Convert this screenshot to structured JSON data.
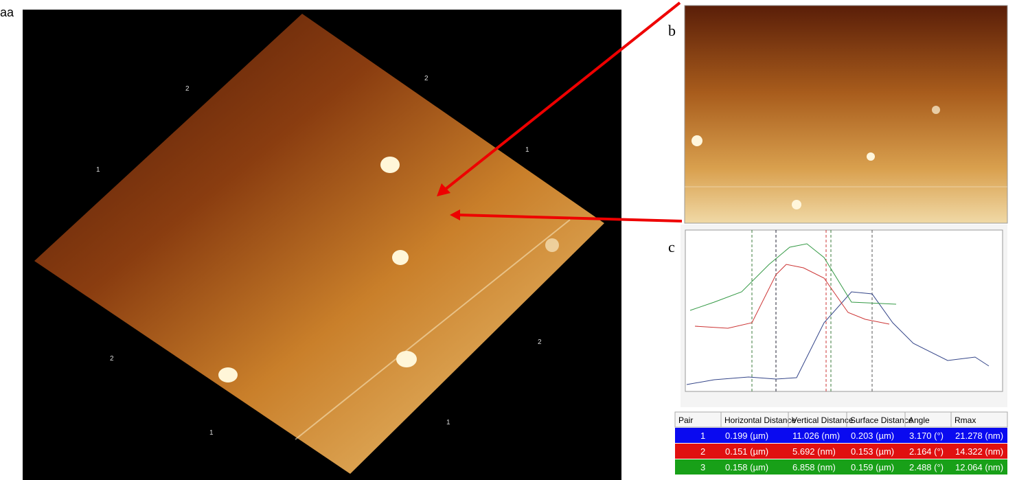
{
  "panel_labels": [
    "aa",
    "b",
    "c"
  ],
  "panel_a": {
    "axis_labels": [
      "2",
      "2",
      "1",
      "1",
      "2",
      "2",
      "1",
      "1"
    ]
  },
  "table": {
    "header": [
      "Pair",
      "Horizontal Distance",
      "Vertical Distance",
      "Surface Distance",
      "Angle",
      "Rmax"
    ],
    "rows": [
      [
        "1",
        "0.199 (µm)",
        "11.026 (nm)",
        "0.203 (µm)",
        "3.170 (°)",
        "21.278 (nm)"
      ],
      [
        "2",
        "0.151 (µm)",
        "5.692 (nm)",
        "0.153 (µm)",
        "2.164 (°)",
        "14.322 (nm)"
      ],
      [
        "3",
        "0.158 (µm)",
        "6.858 (nm)",
        "0.159 (µm)",
        "2.488 (°)",
        "12.064 (nm)"
      ]
    ]
  }
}
